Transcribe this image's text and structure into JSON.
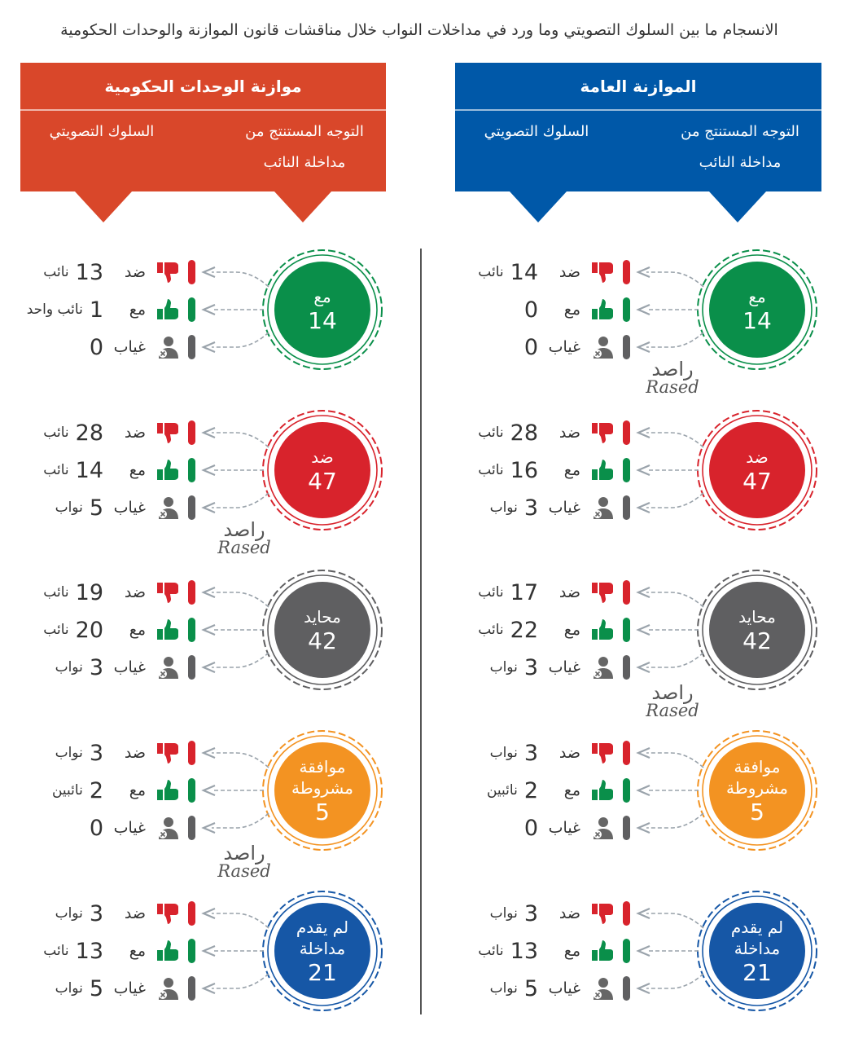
{
  "title": "الانسجام ما بين السلوك التصويتي وما ورد في مداخلات النواب خلال مناقشات قانون الموازنة والوحدات الحكومية",
  "colors": {
    "green": "#0a8f4a",
    "red": "#d8232c",
    "gray": "#5f5f61",
    "orange": "#f39322",
    "blue": "#1657a6",
    "header_orange": "#d9472a",
    "header_blue": "#0058a8"
  },
  "vote_labels": {
    "against": "ضد",
    "for": "مع",
    "absent": "غياب"
  },
  "watermark": {
    "ar": "راصد",
    "en": "Rased"
  },
  "panels": [
    {
      "key": "general",
      "title": "الموازنة العامة",
      "col1": "التوجه المستنتج من مداخلة النائب",
      "col2": "السلوك التصويتي"
    },
    {
      "key": "units",
      "title": "موازنة الوحدات الحكومية",
      "col1": "التوجه المستنتج من مداخلة النائب",
      "col2": "السلوك التصويتي"
    }
  ],
  "columns": [
    {
      "key": "general",
      "groups": [
        {
          "stance": "مع",
          "total": "14",
          "color": "green",
          "rows": [
            [
              "14",
              "نائب"
            ],
            [
              "0",
              ""
            ],
            [
              "0",
              ""
            ]
          ]
        },
        {
          "stance": "ضد",
          "total": "47",
          "color": "red",
          "rows": [
            [
              "28",
              "نائب"
            ],
            [
              "16",
              "نائب"
            ],
            [
              "3",
              "نواب"
            ]
          ]
        },
        {
          "stance": "محايد",
          "total": "42",
          "color": "gray",
          "rows": [
            [
              "17",
              "نائب"
            ],
            [
              "22",
              "نائب"
            ],
            [
              "3",
              "نواب"
            ]
          ]
        },
        {
          "stance": "موافقة مشروطة",
          "total": "5",
          "color": "orange",
          "rows": [
            [
              "3",
              "نواب"
            ],
            [
              "2",
              "نائبين"
            ],
            [
              "0",
              ""
            ]
          ]
        },
        {
          "stance": "لم يقدم مداخلة",
          "total": "21",
          "color": "blue",
          "rows": [
            [
              "3",
              "نواب"
            ],
            [
              "13",
              "نائب"
            ],
            [
              "5",
              "نواب"
            ]
          ]
        }
      ]
    },
    {
      "key": "units",
      "groups": [
        {
          "stance": "مع",
          "total": "14",
          "color": "green",
          "rows": [
            [
              "13",
              "نائب"
            ],
            [
              "1",
              "نائب واحد"
            ],
            [
              "0",
              ""
            ]
          ]
        },
        {
          "stance": "ضد",
          "total": "47",
          "color": "red",
          "rows": [
            [
              "28",
              "نائب"
            ],
            [
              "14",
              "نائب"
            ],
            [
              "5",
              "نواب"
            ]
          ]
        },
        {
          "stance": "محايد",
          "total": "42",
          "color": "gray",
          "rows": [
            [
              "19",
              "نائب"
            ],
            [
              "20",
              "نائب"
            ],
            [
              "3",
              "نواب"
            ]
          ]
        },
        {
          "stance": "موافقة مشروطة",
          "total": "5",
          "color": "orange",
          "rows": [
            [
              "3",
              "نواب"
            ],
            [
              "2",
              "نائبين"
            ],
            [
              "0",
              ""
            ]
          ]
        },
        {
          "stance": "لم يقدم مداخلة",
          "total": "21",
          "color": "blue",
          "rows": [
            [
              "3",
              "نواب"
            ],
            [
              "13",
              "نائب"
            ],
            [
              "5",
              "نواب"
            ]
          ]
        }
      ]
    }
  ]
}
